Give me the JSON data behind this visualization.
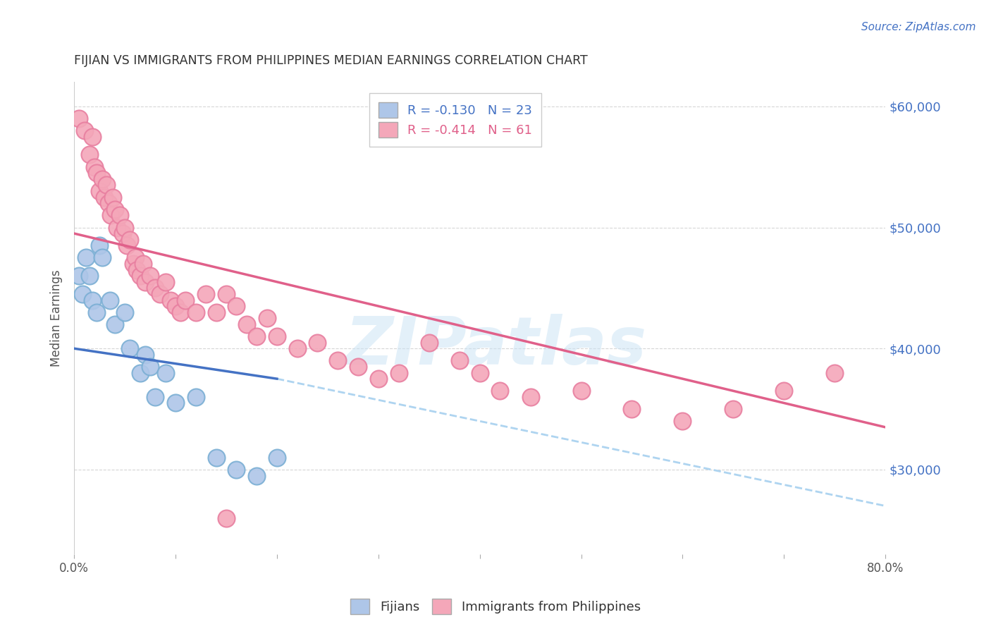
{
  "title": "FIJIAN VS IMMIGRANTS FROM PHILIPPINES MEDIAN EARNINGS CORRELATION CHART",
  "source": "Source: ZipAtlas.com",
  "ylabel": "Median Earnings",
  "watermark": "ZIPatlas",
  "fijians_label": "Fijians",
  "philippines_label": "Immigrants from Philippines",
  "fijian_color": "#aec6e8",
  "fijian_edge_color": "#7bafd4",
  "philippines_color": "#f4a7b9",
  "philippines_edge_color": "#e87fa0",
  "blue_line_color": "#4472c4",
  "pink_line_color": "#e0608a",
  "dashed_line_color": "#aed4f0",
  "grid_color": "#cccccc",
  "background_color": "#ffffff",
  "title_color": "#333333",
  "right_axis_color": "#4472c4",
  "xlim": [
    0.0,
    0.8
  ],
  "ylim": [
    23000,
    62000
  ],
  "yticks": [
    30000,
    40000,
    50000,
    60000
  ],
  "ytick_labels": [
    "$30,000",
    "$40,000",
    "$50,000",
    "$60,000"
  ],
  "xtick_labels": [
    "0.0%",
    "",
    "",
    "",
    "",
    "",
    "",
    "",
    "80.0%"
  ],
  "fijian_R": -0.13,
  "fijian_N": 23,
  "philippines_R": -0.414,
  "philippines_N": 61,
  "fijian_points": [
    [
      0.005,
      46000
    ],
    [
      0.008,
      44500
    ],
    [
      0.012,
      47500
    ],
    [
      0.015,
      46000
    ],
    [
      0.018,
      44000
    ],
    [
      0.022,
      43000
    ],
    [
      0.025,
      48500
    ],
    [
      0.028,
      47500
    ],
    [
      0.035,
      44000
    ],
    [
      0.04,
      42000
    ],
    [
      0.05,
      43000
    ],
    [
      0.055,
      40000
    ],
    [
      0.065,
      38000
    ],
    [
      0.07,
      39500
    ],
    [
      0.075,
      38500
    ],
    [
      0.08,
      36000
    ],
    [
      0.09,
      38000
    ],
    [
      0.1,
      35500
    ],
    [
      0.12,
      36000
    ],
    [
      0.14,
      31000
    ],
    [
      0.16,
      30000
    ],
    [
      0.18,
      29500
    ],
    [
      0.2,
      31000
    ]
  ],
  "philippines_points": [
    [
      0.005,
      59000
    ],
    [
      0.01,
      58000
    ],
    [
      0.015,
      56000
    ],
    [
      0.018,
      57500
    ],
    [
      0.02,
      55000
    ],
    [
      0.022,
      54500
    ],
    [
      0.025,
      53000
    ],
    [
      0.028,
      54000
    ],
    [
      0.03,
      52500
    ],
    [
      0.032,
      53500
    ],
    [
      0.034,
      52000
    ],
    [
      0.036,
      51000
    ],
    [
      0.038,
      52500
    ],
    [
      0.04,
      51500
    ],
    [
      0.042,
      50000
    ],
    [
      0.045,
      51000
    ],
    [
      0.048,
      49500
    ],
    [
      0.05,
      50000
    ],
    [
      0.052,
      48500
    ],
    [
      0.055,
      49000
    ],
    [
      0.058,
      47000
    ],
    [
      0.06,
      47500
    ],
    [
      0.062,
      46500
    ],
    [
      0.065,
      46000
    ],
    [
      0.068,
      47000
    ],
    [
      0.07,
      45500
    ],
    [
      0.075,
      46000
    ],
    [
      0.08,
      45000
    ],
    [
      0.085,
      44500
    ],
    [
      0.09,
      45500
    ],
    [
      0.095,
      44000
    ],
    [
      0.1,
      43500
    ],
    [
      0.105,
      43000
    ],
    [
      0.11,
      44000
    ],
    [
      0.12,
      43000
    ],
    [
      0.13,
      44500
    ],
    [
      0.14,
      43000
    ],
    [
      0.15,
      44500
    ],
    [
      0.16,
      43500
    ],
    [
      0.17,
      42000
    ],
    [
      0.18,
      41000
    ],
    [
      0.19,
      42500
    ],
    [
      0.2,
      41000
    ],
    [
      0.22,
      40000
    ],
    [
      0.24,
      40500
    ],
    [
      0.26,
      39000
    ],
    [
      0.28,
      38500
    ],
    [
      0.3,
      37500
    ],
    [
      0.32,
      38000
    ],
    [
      0.35,
      40500
    ],
    [
      0.38,
      39000
    ],
    [
      0.4,
      38000
    ],
    [
      0.42,
      36500
    ],
    [
      0.45,
      36000
    ],
    [
      0.5,
      36500
    ],
    [
      0.55,
      35000
    ],
    [
      0.6,
      34000
    ],
    [
      0.65,
      35000
    ],
    [
      0.7,
      36500
    ],
    [
      0.75,
      38000
    ],
    [
      0.15,
      26000
    ]
  ],
  "pink_line_x0": 0.0,
  "pink_line_y0": 49500,
  "pink_line_x1": 0.8,
  "pink_line_y1": 33500,
  "blue_line_x0": 0.0,
  "blue_line_y0": 40000,
  "blue_line_x1": 0.2,
  "blue_line_y1": 37500,
  "dash_line_x0": 0.2,
  "dash_line_y0": 37500,
  "dash_line_x1": 0.8,
  "dash_line_y1": 27000
}
